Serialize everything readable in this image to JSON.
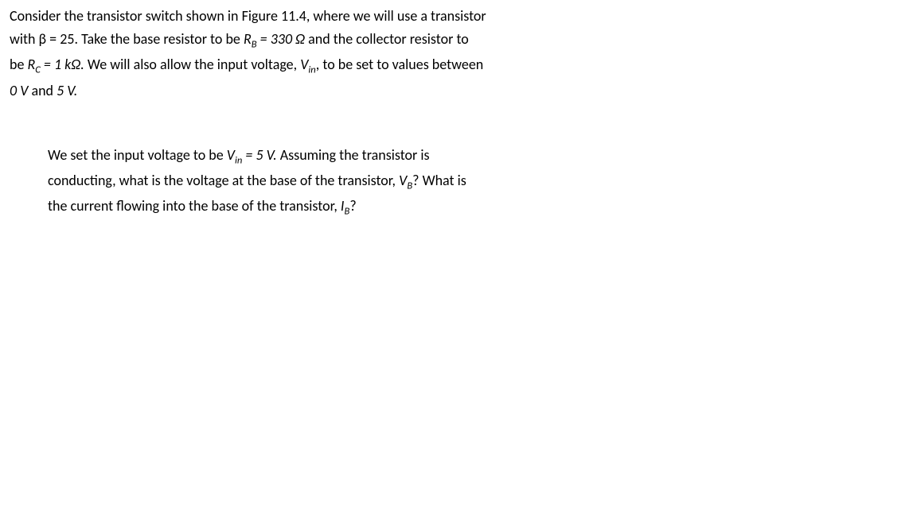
{
  "intro": {
    "line1_a": "Consider the transistor switch shown in Figure 11.4, where we will use a transistor",
    "line2_a": "with β = 25. Take the base resistor to be ",
    "line2_rb": "R",
    "line2_rb_sub": "B",
    "line2_b": " = 330 Ω",
    "line2_c": " and the collector resistor to",
    "line3_a": "be ",
    "line3_rc": "R",
    "line3_rc_sub": "C",
    "line3_b": " = 1 kΩ.",
    "line3_c": " We will also allow the input voltage, ",
    "line3_vin": "V",
    "line3_vin_sub": "in",
    "line3_d": ", to be set to values between",
    "line4_a": "0 V",
    "line4_b": " and ",
    "line4_c": "5 V."
  },
  "question": {
    "line1_a": "We set the input voltage to be ",
    "line1_vin": "V",
    "line1_vin_sub": "in",
    "line1_b": " = 5 V.",
    "line1_c": " Assuming the transistor is",
    "line2_a": "conducting, what is the voltage at the base of the transistor, ",
    "line2_vb": "V",
    "line2_vb_sub": "B",
    "line2_b": "? What is",
    "line3_a": "the current flowing into the base of the transistor, ",
    "line3_ib": "I",
    "line3_ib_sub": "B",
    "line3_b": "?"
  }
}
